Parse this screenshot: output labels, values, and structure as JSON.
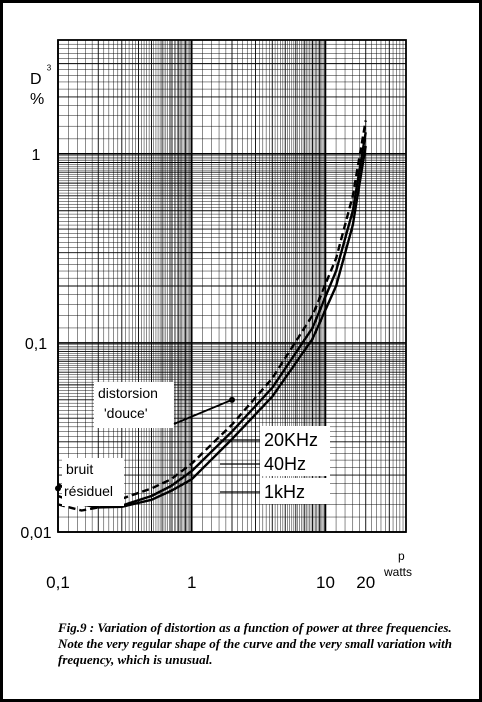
{
  "chart_data": {
    "type": "line",
    "x_scale": "log",
    "y_scale": "log",
    "xlim": [
      0.1,
      40
    ],
    "ylim": [
      0.01,
      4
    ],
    "y_axis_label": [
      "D",
      "%"
    ],
    "x_axis_label": [
      "p",
      "watts"
    ],
    "x_ticks": [
      {
        "value": 0.1,
        "label": "0,1"
      },
      {
        "value": 1,
        "label": "1"
      },
      {
        "value": 10,
        "label": "10"
      },
      {
        "value": 20,
        "label": "20"
      }
    ],
    "y_ticks": [
      {
        "value": 0.01,
        "label": "0,01"
      },
      {
        "value": 0.1,
        "label": "0,1"
      },
      {
        "value": 1,
        "label": "1"
      },
      {
        "value": 3,
        "label": "3"
      }
    ],
    "series": [
      {
        "name": "20KHz",
        "style": "dashed",
        "x": [
          0.1,
          0.15,
          0.2,
          0.3,
          0.5,
          0.7,
          1,
          2,
          4,
          8,
          12,
          16,
          20
        ],
        "y": [
          0.014,
          0.013,
          0.0135,
          0.015,
          0.017,
          0.019,
          0.023,
          0.037,
          0.065,
          0.14,
          0.28,
          0.6,
          1.5
        ]
      },
      {
        "name": "40Hz",
        "style": "solid",
        "x": [
          0.1,
          0.15,
          0.2,
          0.3,
          0.5,
          0.7,
          1,
          2,
          4,
          8,
          12,
          16,
          20
        ],
        "y": [
          0.0155,
          0.014,
          0.0135,
          0.0138,
          0.0155,
          0.0175,
          0.021,
          0.034,
          0.058,
          0.12,
          0.24,
          0.5,
          1.3
        ]
      },
      {
        "name": "1kHz",
        "style": "solid",
        "x": [
          0.1,
          0.15,
          0.2,
          0.3,
          0.5,
          0.7,
          1,
          2,
          4,
          8,
          12,
          16,
          20
        ],
        "y": [
          0.018,
          0.0145,
          0.0135,
          0.0136,
          0.0148,
          0.0165,
          0.019,
          0.031,
          0.052,
          0.105,
          0.2,
          0.42,
          1.1
        ]
      }
    ],
    "annotations": [
      {
        "text": [
          "distorsion",
          "'douce'"
        ],
        "points_to": [
          2,
          0.05
        ]
      },
      {
        "text": [
          "bruit",
          "résiduel"
        ],
        "points_to": [
          0.1,
          0.017
        ]
      }
    ]
  },
  "caption": "Fig.9 : Variation of distortion as a function of power at three frequencies. Note the very regular shape of the curve and the very small variation with frequency, which is unusual."
}
